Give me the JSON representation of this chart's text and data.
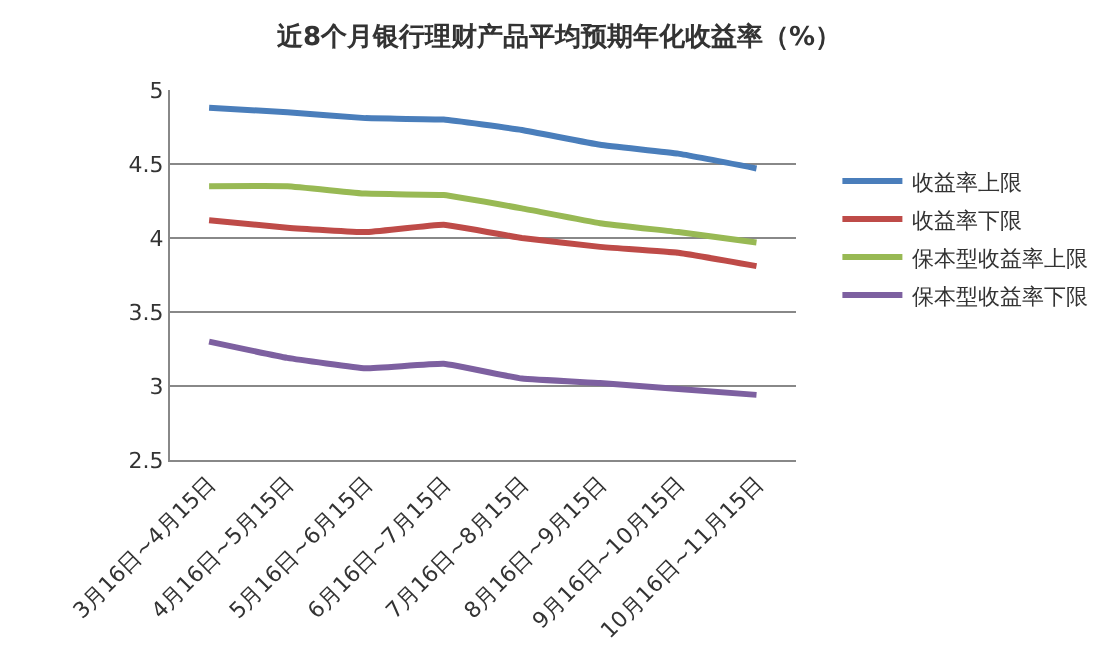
{
  "chart_data": {
    "type": "line",
    "title": "近8个月银行理财产品平均预期年化收益率（%）",
    "categories": [
      "3月16日~4月15日",
      "4月16日~5月15日",
      "5月16日~6月15日",
      "6月16日~7月15日",
      "7月16日~8月15日",
      "8月16日~9月15日",
      "9月16日~10月15日",
      "10月16日~11月15日"
    ],
    "series": [
      {
        "name": "收益率上限",
        "color": "#4a7ebb",
        "values": [
          4.88,
          4.85,
          4.81,
          4.8,
          4.73,
          4.63,
          4.57,
          4.47
        ]
      },
      {
        "name": "收益率下限",
        "color": "#be4b48",
        "values": [
          4.12,
          4.07,
          4.04,
          4.09,
          4.0,
          3.94,
          3.9,
          3.81
        ]
      },
      {
        "name": "保本型收益率上限",
        "color": "#98b954",
        "values": [
          4.35,
          4.35,
          4.3,
          4.29,
          4.2,
          4.1,
          4.04,
          3.97
        ]
      },
      {
        "name": "保本型收益率下限",
        "color": "#7d60a0",
        "values": [
          3.3,
          3.19,
          3.12,
          3.15,
          3.05,
          3.02,
          2.98,
          2.94
        ]
      }
    ],
    "ylim": [
      2.5,
      5
    ],
    "yticks": [
      2.5,
      3,
      3.5,
      4,
      4.5,
      5
    ],
    "grid": "y",
    "legend": "right",
    "marker": "none",
    "line_style": "solid"
  }
}
